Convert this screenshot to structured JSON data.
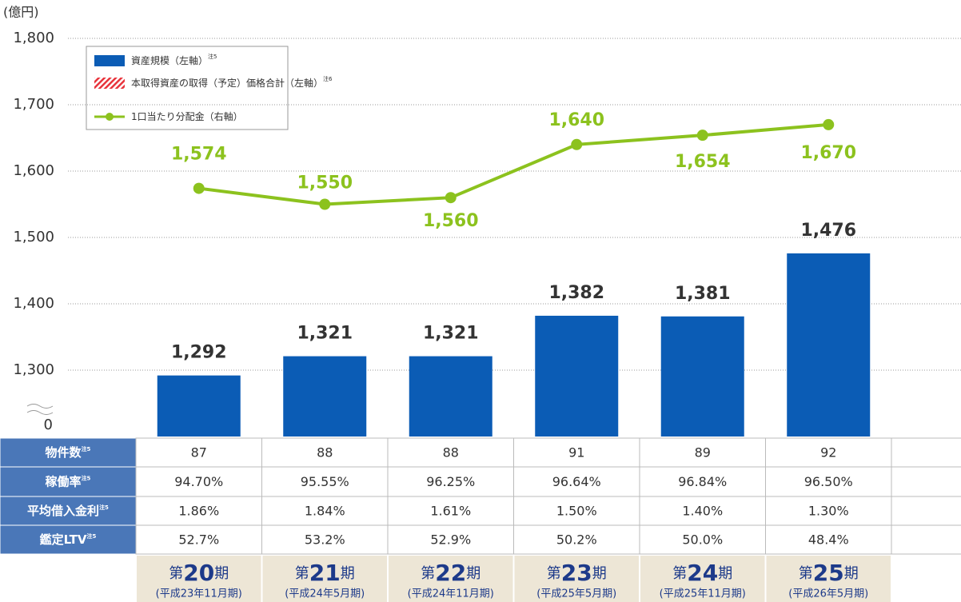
{
  "chart_data": {
    "type": "bar",
    "unit_label": "(億円)",
    "y_break_label": "0",
    "categories": [
      "第20期",
      "第21期",
      "第22期",
      "第23期",
      "第24期",
      "第25期"
    ],
    "ylim": [
      1200,
      1800
    ],
    "yticks": [
      {
        "value": 1300,
        "label": "1,300"
      },
      {
        "value": 1400,
        "label": "1,400"
      },
      {
        "value": 1500,
        "label": "1,500"
      },
      {
        "value": 1600,
        "label": "1,600"
      },
      {
        "value": 1700,
        "label": "1,700"
      },
      {
        "value": 1800,
        "label": "1,800"
      }
    ],
    "y2lim": [
      1200,
      1800
    ],
    "grid": true,
    "legend": "top-left",
    "series": [
      {
        "name": "資産規模（左軸）",
        "note": "注5",
        "color": "#0b5cb5",
        "values": [
          1292,
          1321,
          1321,
          1382,
          1381,
          1476
        ],
        "value_labels": [
          "1,292",
          "1,321",
          "1,321",
          "1,382",
          "1,381",
          "1,476"
        ]
      },
      {
        "name": "本取得資産の取得（予定）価格合計（左軸）",
        "note": "注6",
        "color": "#e8343c",
        "values": [
          null,
          null,
          null,
          null,
          null,
          null
        ]
      },
      {
        "name": "1口当たり分配金（右軸）",
        "type": "line",
        "axis": "y2",
        "color": "#8cc21e",
        "values": [
          1574,
          1550,
          1560,
          1640,
          1654,
          1670
        ],
        "value_labels": [
          "1,574",
          "1,550",
          "1,560",
          "1,640",
          "1,654",
          "1,670"
        ]
      }
    ],
    "table": {
      "rows": [
        {
          "label": "物件数",
          "note": "注5",
          "cells": [
            "87",
            "88",
            "88",
            "91",
            "89",
            "92"
          ]
        },
        {
          "label": "稼働率",
          "note": "注5",
          "cells": [
            "94.70%",
            "95.55%",
            "96.25%",
            "96.64%",
            "96.84%",
            "96.50%"
          ]
        },
        {
          "label": "平均借入金利",
          "note": "注5",
          "cells": [
            "1.86%",
            "1.84%",
            "1.61%",
            "1.50%",
            "1.40%",
            "1.30%"
          ]
        },
        {
          "label": "鑑定LTV",
          "note": "注5",
          "cells": [
            "52.7%",
            "53.2%",
            "52.9%",
            "50.2%",
            "50.0%",
            "48.4%"
          ]
        }
      ],
      "periods": [
        {
          "prefix": "第",
          "number": "20",
          "suffix": "期",
          "sub": "(平成23年11月期)"
        },
        {
          "prefix": "第",
          "number": "21",
          "suffix": "期",
          "sub": "(平成24年5月期)"
        },
        {
          "prefix": "第",
          "number": "22",
          "suffix": "期",
          "sub": "(平成24年11月期)"
        },
        {
          "prefix": "第",
          "number": "23",
          "suffix": "期",
          "sub": "(平成25年5月期)"
        },
        {
          "prefix": "第",
          "number": "24",
          "suffix": "期",
          "sub": "(平成25年11月期)"
        },
        {
          "prefix": "第",
          "number": "25",
          "suffix": "期",
          "sub": "(平成26年5月期)"
        }
      ]
    }
  }
}
